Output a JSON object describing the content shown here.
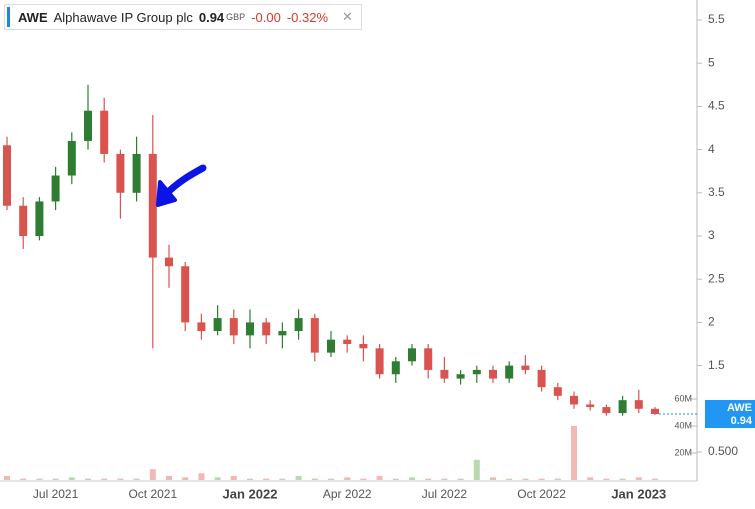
{
  "header": {
    "symbol": "AWE",
    "name": "Alphawave IP Group plc",
    "price": "0.94",
    "currency": "GBP",
    "change": "-0.00",
    "change_pct": "-0.32%"
  },
  "chart_data": {
    "type": "candlestick",
    "categories": [
      null,
      null,
      null,
      "Jul 2021",
      null,
      null,
      null,
      null,
      null,
      "Oct 2021",
      null,
      null,
      null,
      null,
      null,
      "Jan 2022",
      null,
      null,
      null,
      null,
      null,
      "Apr 2022",
      null,
      null,
      null,
      null,
      null,
      "Jul 2022",
      null,
      null,
      null,
      null,
      null,
      "Oct 2022",
      null,
      null,
      null,
      null,
      null,
      "Jan 2023",
      null
    ],
    "open": [
      4.05,
      3.35,
      3.0,
      3.4,
      3.7,
      4.1,
      4.45,
      3.95,
      3.5,
      3.95,
      2.75,
      2.65,
      2.0,
      1.9,
      2.05,
      1.85,
      2.0,
      1.85,
      1.9,
      2.05,
      1.65,
      1.8,
      1.75,
      1.7,
      1.4,
      1.55,
      1.7,
      1.45,
      1.35,
      1.4,
      1.45,
      1.35,
      1.5,
      1.45,
      1.25,
      1.15,
      1.05,
      1.02,
      0.95,
      1.1,
      1.0
    ],
    "high": [
      4.15,
      3.45,
      3.45,
      3.8,
      4.2,
      4.75,
      4.6,
      4.0,
      4.15,
      4.4,
      2.9,
      2.7,
      2.1,
      2.2,
      2.15,
      2.15,
      2.05,
      2.0,
      2.15,
      2.1,
      1.9,
      1.85,
      1.85,
      1.75,
      1.6,
      1.75,
      1.75,
      1.6,
      1.45,
      1.5,
      1.5,
      1.55,
      1.62,
      1.5,
      1.3,
      1.2,
      1.1,
      1.05,
      1.15,
      1.22,
      1.02
    ],
    "low": [
      3.3,
      2.85,
      2.95,
      3.3,
      3.6,
      4.0,
      3.85,
      3.2,
      3.4,
      1.7,
      2.4,
      1.9,
      1.8,
      1.85,
      1.75,
      1.7,
      1.75,
      1.7,
      1.8,
      1.55,
      1.6,
      1.65,
      1.55,
      1.35,
      1.3,
      1.5,
      1.35,
      1.3,
      1.28,
      1.3,
      1.3,
      1.3,
      1.4,
      1.2,
      1.1,
      1.0,
      0.98,
      0.92,
      0.92,
      0.95,
      0.93
    ],
    "close": [
      3.35,
      3.0,
      3.4,
      3.7,
      4.1,
      4.45,
      3.95,
      3.5,
      3.95,
      2.75,
      2.65,
      2.0,
      1.9,
      2.05,
      1.85,
      2.0,
      1.85,
      1.9,
      2.05,
      1.65,
      1.8,
      1.75,
      1.7,
      1.4,
      1.55,
      1.7,
      1.45,
      1.35,
      1.4,
      1.45,
      1.35,
      1.5,
      1.45,
      1.25,
      1.15,
      1.05,
      1.02,
      0.95,
      1.1,
      1.0,
      0.94
    ],
    "volume": [
      3,
      1,
      1,
      1,
      2,
      1,
      1,
      1,
      1,
      8,
      3,
      2,
      5,
      2,
      3,
      1,
      1,
      1,
      3,
      1,
      1,
      2,
      1,
      3,
      1,
      2,
      1,
      1,
      1,
      15,
      2,
      1,
      1,
      1,
      1,
      40,
      2,
      1,
      1,
      2,
      1
    ],
    "up_color": "#2e7d32",
    "down_color": "#d9534f",
    "volume_color": "#b8d9b0",
    "ylim": [
      0.25,
      5.75
    ],
    "yticks": [
      5.5,
      5,
      4.5,
      4,
      3.5,
      3,
      2.5,
      2,
      1.5,
      {
        "value": 0.5,
        "label": "0.500"
      }
    ],
    "volume_lim": [
      0,
      100
    ],
    "volume_ticks": [
      {
        "value": 60,
        "label": "60M"
      },
      {
        "value": 40,
        "label": "40M"
      },
      {
        "value": 20,
        "label": "20M"
      }
    ]
  }
}
